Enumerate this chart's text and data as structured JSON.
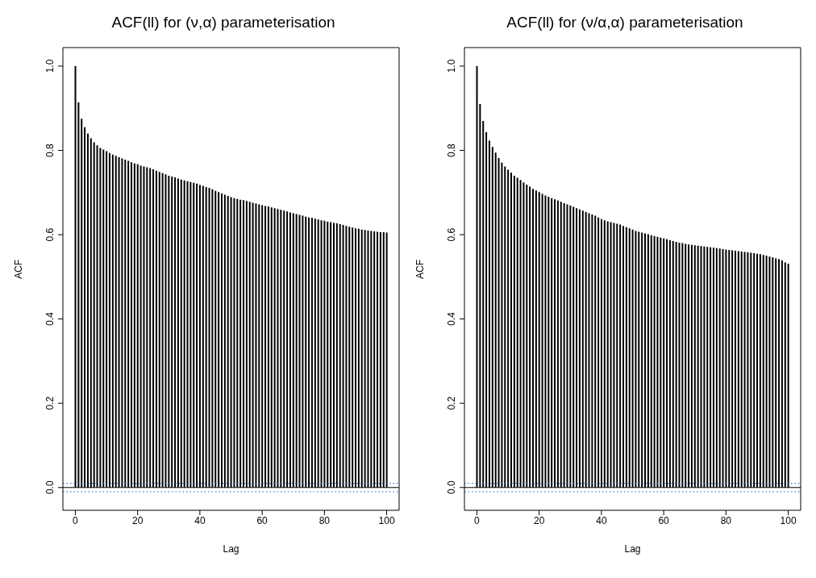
{
  "chart_data": [
    {
      "type": "bar",
      "title": "ACF(ll) for (ν,α) parameterisation",
      "xlabel": "Lag",
      "ylabel": "ACF",
      "color": "#000000",
      "x": [
        0,
        1,
        2,
        3,
        4,
        5,
        6,
        7,
        8,
        9,
        10,
        11,
        12,
        13,
        14,
        15,
        16,
        17,
        18,
        19,
        20,
        21,
        22,
        23,
        24,
        25,
        26,
        27,
        28,
        29,
        30,
        31,
        32,
        33,
        34,
        35,
        36,
        37,
        38,
        39,
        40,
        41,
        42,
        43,
        44,
        45,
        46,
        47,
        48,
        49,
        50,
        51,
        52,
        53,
        54,
        55,
        56,
        57,
        58,
        59,
        60,
        61,
        62,
        63,
        64,
        65,
        66,
        67,
        68,
        69,
        70,
        71,
        72,
        73,
        74,
        75,
        76,
        77,
        78,
        79,
        80,
        81,
        82,
        83,
        84,
        85,
        86,
        87,
        88,
        89,
        90,
        91,
        92,
        93,
        94,
        95,
        96,
        97,
        98,
        99,
        100
      ],
      "values": [
        1.0,
        0.914,
        0.875,
        0.855,
        0.84,
        0.829,
        0.819,
        0.812,
        0.806,
        0.802,
        0.798,
        0.794,
        0.79,
        0.787,
        0.784,
        0.781,
        0.778,
        0.775,
        0.772,
        0.769,
        0.767,
        0.764,
        0.762,
        0.76,
        0.758,
        0.755,
        0.752,
        0.749,
        0.746,
        0.743,
        0.74,
        0.738,
        0.736,
        0.733,
        0.731,
        0.729,
        0.727,
        0.725,
        0.723,
        0.721,
        0.718,
        0.716,
        0.713,
        0.711,
        0.708,
        0.704,
        0.701,
        0.698,
        0.695,
        0.692,
        0.689,
        0.687,
        0.685,
        0.683,
        0.682,
        0.68,
        0.678,
        0.676,
        0.674,
        0.672,
        0.67,
        0.668,
        0.667,
        0.665,
        0.663,
        0.661,
        0.659,
        0.657,
        0.655,
        0.653,
        0.651,
        0.649,
        0.647,
        0.645,
        0.643,
        0.641,
        0.64,
        0.638,
        0.636,
        0.634,
        0.633,
        0.631,
        0.63,
        0.628,
        0.627,
        0.625,
        0.623,
        0.621,
        0.619,
        0.617,
        0.615,
        0.614,
        0.612,
        0.611,
        0.61,
        0.609,
        0.608,
        0.607,
        0.606,
        0.606,
        0.605
      ],
      "xlim": [
        -4,
        104
      ],
      "xticks": [
        0,
        20,
        40,
        60,
        80,
        100
      ],
      "ylim": [
        -0.054,
        1.044
      ],
      "yticks": [
        {
          "value": 0,
          "label": "0.0"
        },
        {
          "value": 0.2,
          "label": "0.2"
        },
        {
          "value": 0.4,
          "label": "0.4"
        },
        {
          "value": 0.6,
          "label": "0.6"
        },
        {
          "value": 0.8,
          "label": "0.8"
        },
        {
          "value": 1,
          "label": "1.0"
        }
      ],
      "ref_lines": [
        {
          "axis": "y",
          "value": 0,
          "color": "#000000",
          "line_style": "solid"
        },
        {
          "axis": "y",
          "value": 0.01,
          "color": "#1f5fbf",
          "line_style": "dotted"
        },
        {
          "axis": "y",
          "value": -0.01,
          "color": "#1f5fbf",
          "line_style": "dotted"
        }
      ],
      "grid": false,
      "legend": false
    },
    {
      "type": "bar",
      "title": "ACF(ll) for (ν/α,α) parameterisation",
      "xlabel": "Lag",
      "ylabel": "ACF",
      "color": "#000000",
      "x": [
        0,
        1,
        2,
        3,
        4,
        5,
        6,
        7,
        8,
        9,
        10,
        11,
        12,
        13,
        14,
        15,
        16,
        17,
        18,
        19,
        20,
        21,
        22,
        23,
        24,
        25,
        26,
        27,
        28,
        29,
        30,
        31,
        32,
        33,
        34,
        35,
        36,
        37,
        38,
        39,
        40,
        41,
        42,
        43,
        44,
        45,
        46,
        47,
        48,
        49,
        50,
        51,
        52,
        53,
        54,
        55,
        56,
        57,
        58,
        59,
        60,
        61,
        62,
        63,
        64,
        65,
        66,
        67,
        68,
        69,
        70,
        71,
        72,
        73,
        74,
        75,
        76,
        77,
        78,
        79,
        80,
        81,
        82,
        83,
        84,
        85,
        86,
        87,
        88,
        89,
        90,
        91,
        92,
        93,
        94,
        95,
        96,
        97,
        98,
        99,
        100
      ],
      "values": [
        1.0,
        0.91,
        0.87,
        0.843,
        0.823,
        0.808,
        0.795,
        0.782,
        0.771,
        0.762,
        0.754,
        0.747,
        0.74,
        0.735,
        0.73,
        0.724,
        0.719,
        0.714,
        0.709,
        0.705,
        0.701,
        0.697,
        0.693,
        0.69,
        0.687,
        0.684,
        0.681,
        0.678,
        0.675,
        0.672,
        0.669,
        0.666,
        0.663,
        0.66,
        0.657,
        0.654,
        0.651,
        0.648,
        0.645,
        0.641,
        0.637,
        0.634,
        0.632,
        0.63,
        0.628,
        0.626,
        0.624,
        0.621,
        0.618,
        0.615,
        0.612,
        0.609,
        0.607,
        0.605,
        0.603,
        0.601,
        0.599,
        0.597,
        0.595,
        0.593,
        0.591,
        0.589,
        0.587,
        0.585,
        0.583,
        0.581,
        0.58,
        0.578,
        0.577,
        0.576,
        0.575,
        0.574,
        0.573,
        0.572,
        0.571,
        0.57,
        0.569,
        0.568,
        0.567,
        0.566,
        0.565,
        0.564,
        0.563,
        0.562,
        0.561,
        0.56,
        0.559,
        0.558,
        0.557,
        0.556,
        0.555,
        0.554,
        0.552,
        0.55,
        0.548,
        0.546,
        0.544,
        0.542,
        0.539,
        0.534,
        0.531
      ],
      "xlim": [
        -4,
        104
      ],
      "xticks": [
        0,
        20,
        40,
        60,
        80,
        100
      ],
      "ylim": [
        -0.054,
        1.044
      ],
      "yticks": [
        {
          "value": 0,
          "label": "0.0"
        },
        {
          "value": 0.2,
          "label": "0.2"
        },
        {
          "value": 0.4,
          "label": "0.4"
        },
        {
          "value": 0.6,
          "label": "0.6"
        },
        {
          "value": 0.8,
          "label": "0.8"
        },
        {
          "value": 1,
          "label": "1.0"
        }
      ],
      "ref_lines": [
        {
          "axis": "y",
          "value": 0,
          "color": "#000000",
          "line_style": "solid"
        },
        {
          "axis": "y",
          "value": 0.01,
          "color": "#1f5fbf",
          "line_style": "dotted"
        },
        {
          "axis": "y",
          "value": -0.01,
          "color": "#1f5fbf",
          "line_style": "dotted"
        }
      ],
      "grid": false,
      "legend": false
    }
  ]
}
